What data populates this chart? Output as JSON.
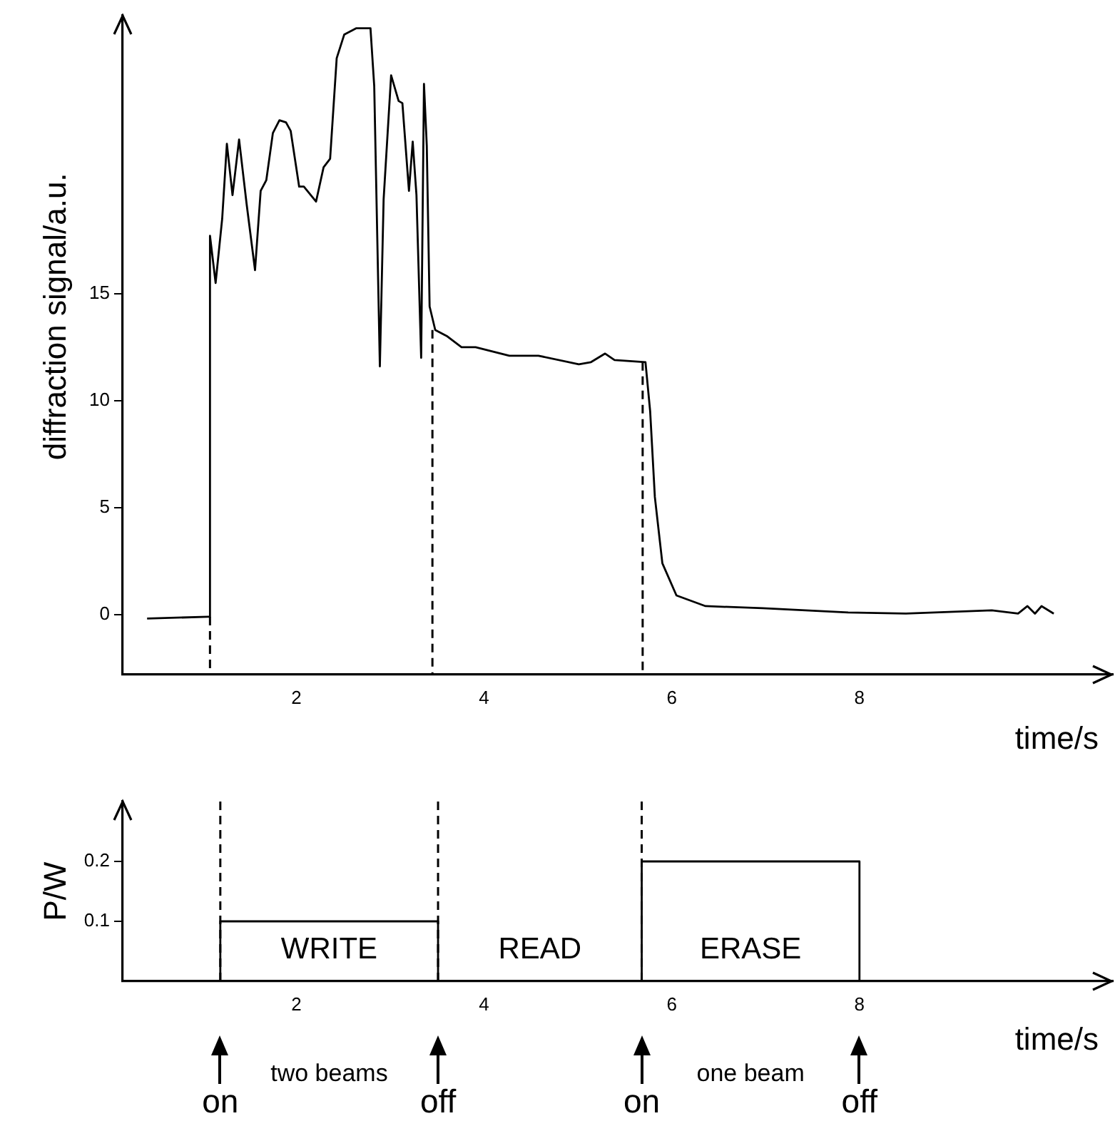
{
  "chart_data": [
    {
      "type": "line",
      "xlabel": "time/s",
      "ylabel": "diffraction signal/a.u.",
      "grid": false,
      "legend": false,
      "marker": "none",
      "line_style": "solid",
      "xlim": [
        0.15,
        10.7
      ],
      "ylim": [
        -2.8,
        28
      ],
      "xticks": [
        2,
        4,
        6,
        8
      ],
      "yticks": [
        0,
        5,
        10,
        15
      ],
      "series": [
        {
          "color": "#000000",
          "x": [
            0.41,
            1.06,
            1.08,
            1.08,
            1.08,
            1.14,
            1.21,
            1.26,
            1.32,
            1.39,
            1.47,
            1.56,
            1.62,
            1.68,
            1.75,
            1.82,
            1.89,
            1.94,
            2.03,
            2.08,
            2.21,
            2.29,
            2.36,
            2.43,
            2.51,
            2.64,
            2.72,
            2.79,
            2.83,
            2.89,
            2.93,
            3.01,
            3.09,
            3.13,
            3.2,
            3.24,
            3.28,
            3.33,
            3.36,
            3.39,
            3.42,
            3.48,
            3.61,
            3.76,
            3.91,
            4.27,
            4.58,
            5.01,
            5.14,
            5.29,
            5.39,
            5.72,
            5.77,
            5.82,
            5.9,
            6.05,
            6.36,
            6.97,
            7.88,
            8.49,
            9.41,
            9.69,
            9.79,
            9.87,
            9.94,
            10.07
          ],
          "values": [
            -0.18,
            -0.1,
            -0.1,
            15.6,
            17.7,
            15.5,
            18.5,
            22.0,
            19.6,
            22.2,
            19.2,
            16.1,
            19.8,
            20.3,
            22.5,
            23.1,
            23.0,
            22.6,
            20.0,
            20.0,
            19.3,
            20.9,
            21.3,
            26.0,
            27.1,
            27.4,
            27.4,
            27.4,
            24.7,
            11.6,
            19.4,
            25.2,
            24.0,
            23.9,
            19.8,
            22.1,
            19.6,
            12.0,
            24.8,
            21.9,
            14.4,
            13.3,
            13.0,
            12.5,
            12.5,
            12.1,
            12.1,
            11.7,
            11.8,
            12.2,
            11.9,
            11.8,
            9.5,
            5.5,
            2.4,
            0.9,
            0.4,
            0.3,
            0.1,
            0.05,
            0.2,
            0.05,
            0.4,
            0.05,
            0.4,
            0.05
          ]
        }
      ],
      "ref_lines": [
        {
          "axis": "x",
          "value": 1.08,
          "line_style": "dashed"
        },
        {
          "axis": "x",
          "value": 3.45,
          "line_style": "dashed"
        },
        {
          "axis": "x",
          "value": 5.69,
          "line_style": "dashed"
        }
      ]
    },
    {
      "type": "step",
      "xlabel": "time/s",
      "ylabel": "P/W",
      "grid": false,
      "legend": false,
      "marker": "none",
      "line_style": "solid",
      "xlim": [
        0.15,
        10.7
      ],
      "ylim": [
        0,
        0.3
      ],
      "xticks": [
        2,
        4,
        6,
        8
      ],
      "yticks": [
        0.1,
        0.2
      ],
      "series": [
        {
          "color": "#000000",
          "x": [
            1.19,
            1.19,
            3.51,
            5.68,
            8.0
          ],
          "values": [
            0,
            0.1,
            0,
            0.2,
            0
          ]
        }
      ],
      "ref_lines": [
        {
          "axis": "x",
          "value": 1.19,
          "line_style": "dashed"
        },
        {
          "axis": "x",
          "value": 3.51,
          "line_style": "dashed"
        },
        {
          "axis": "x",
          "value": 5.68,
          "line_style": "dashed"
        }
      ],
      "annotations": [
        "WRITE",
        "READ",
        "ERASE",
        "two beams",
        "one beam",
        "on",
        "off",
        "on",
        "off"
      ]
    }
  ]
}
